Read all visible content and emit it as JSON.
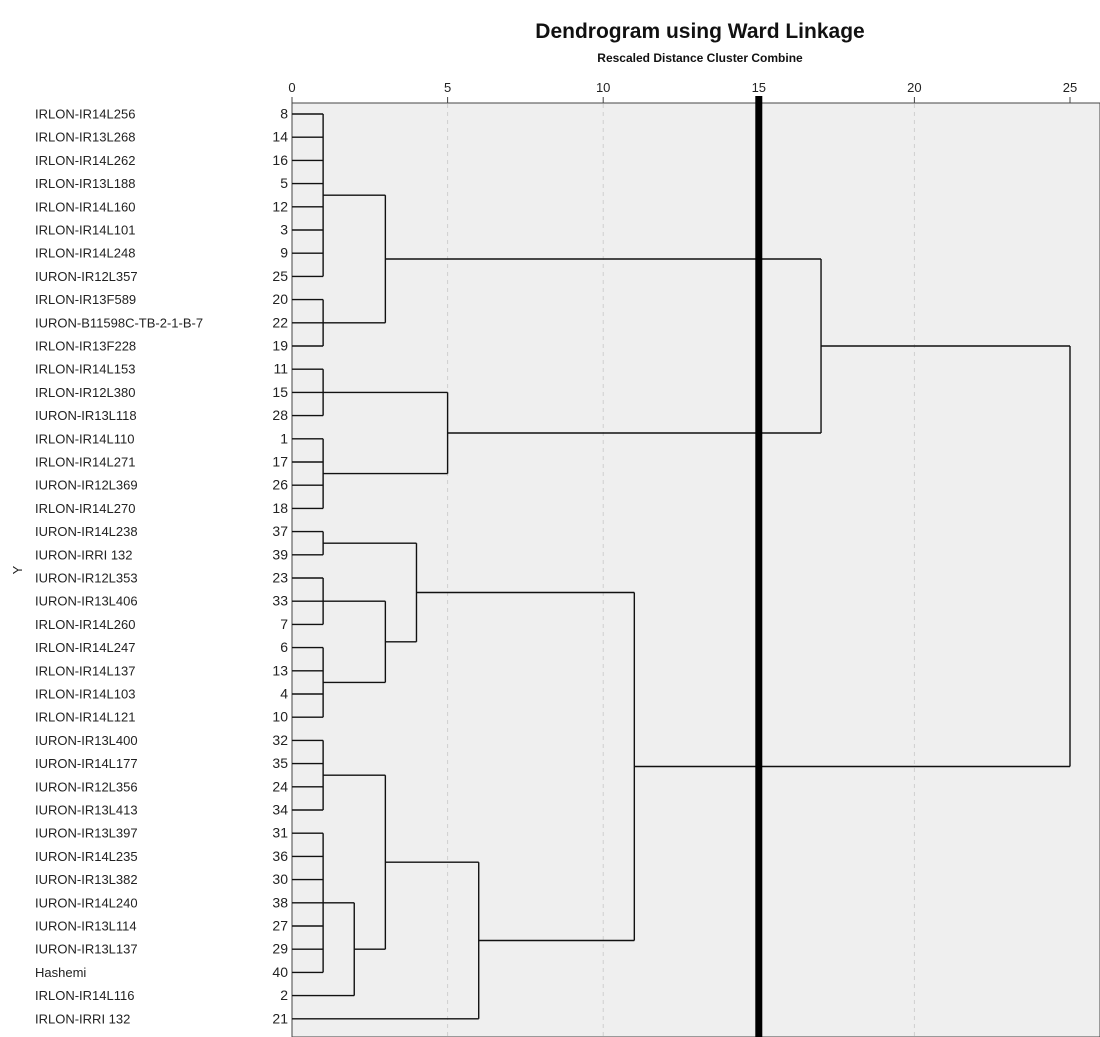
{
  "chart_data": {
    "type": "dendrogram",
    "title": "Dendrogram using Ward Linkage",
    "subtitle": "Rescaled Distance Cluster Combine",
    "ylabel": "Y",
    "x_ticks": [
      0,
      5,
      10,
      15,
      20,
      25
    ],
    "xlim": [
      0,
      25
    ],
    "cut_line": 15,
    "grid": "vertical-dashed",
    "colors": {
      "plot_bg": "#efefef",
      "line": "#111111",
      "cut": "#000000",
      "grid": "#cfcfcf"
    },
    "leaves": [
      {
        "label": "IRLON-IR14L256",
        "case": 8
      },
      {
        "label": "IRLON-IR13L268",
        "case": 14
      },
      {
        "label": "IRLON-IR14L262",
        "case": 16
      },
      {
        "label": "IRLON-IR13L188",
        "case": 5
      },
      {
        "label": "IRLON-IR14L160",
        "case": 12
      },
      {
        "label": "IRLON-IR14L101",
        "case": 3
      },
      {
        "label": "IRLON-IR14L248",
        "case": 9
      },
      {
        "label": "IURON-IR12L357",
        "case": 25
      },
      {
        "label": "IRLON-IR13F589",
        "case": 20
      },
      {
        "label": "IURON-B11598C-TB-2-1-B-7",
        "case": 22
      },
      {
        "label": "IRLON-IR13F228",
        "case": 19
      },
      {
        "label": "IRLON-IR14L153",
        "case": 11
      },
      {
        "label": "IRLON-IR12L380",
        "case": 15
      },
      {
        "label": "IURON-IR13L118",
        "case": 28
      },
      {
        "label": "IRLON-IR14L110",
        "case": 1
      },
      {
        "label": "IRLON-IR14L271",
        "case": 17
      },
      {
        "label": "IURON-IR12L369",
        "case": 26
      },
      {
        "label": "IRLON-IR14L270",
        "case": 18
      },
      {
        "label": "IURON-IR14L238",
        "case": 37
      },
      {
        "label": "IURON-IRRI 132",
        "case": 39
      },
      {
        "label": "IURON-IR12L353",
        "case": 23
      },
      {
        "label": "IURON-IR13L406",
        "case": 33
      },
      {
        "label": "IRLON-IR14L260",
        "case": 7
      },
      {
        "label": "IRLON-IR14L247",
        "case": 6
      },
      {
        "label": "IRLON-IR14L137",
        "case": 13
      },
      {
        "label": "IRLON-IR14L103",
        "case": 4
      },
      {
        "label": "IRLON-IR14L121",
        "case": 10
      },
      {
        "label": "IURON-IR13L400",
        "case": 32
      },
      {
        "label": "IURON-IR14L177",
        "case": 35
      },
      {
        "label": "IURON-IR12L356",
        "case": 24
      },
      {
        "label": "IURON-IR13L413",
        "case": 34
      },
      {
        "label": "IURON-IR13L397",
        "case": 31
      },
      {
        "label": "IURON-IR14L235",
        "case": 36
      },
      {
        "label": "IURON-IR13L382",
        "case": 30
      },
      {
        "label": "IURON-IR14L240",
        "case": 38
      },
      {
        "label": "IURON-IR13L114",
        "case": 27
      },
      {
        "label": "IURON-IR13L137",
        "case": 29
      },
      {
        "label": "Hashemi",
        "case": 40
      },
      {
        "label": "IRLON-IR14L116",
        "case": 2
      },
      {
        "label": "IRLON-IRRI 132",
        "case": 21
      }
    ],
    "merges": [
      {
        "id": "A",
        "height": 1,
        "children": [
          0,
          1,
          2,
          3,
          4,
          5,
          6,
          7
        ]
      },
      {
        "id": "B",
        "height": 1,
        "children": [
          8,
          9,
          10
        ]
      },
      {
        "id": "C",
        "height": 3,
        "children": [
          "A",
          "B"
        ]
      },
      {
        "id": "D",
        "height": 1,
        "children": [
          11,
          12,
          13
        ]
      },
      {
        "id": "E",
        "height": 1,
        "children": [
          14,
          15,
          16,
          17
        ]
      },
      {
        "id": "F",
        "height": 5,
        "children": [
          "D",
          "E"
        ]
      },
      {
        "id": "G",
        "height": 17,
        "children": [
          "C",
          "F"
        ]
      },
      {
        "id": "H",
        "height": 1,
        "children": [
          18,
          19
        ]
      },
      {
        "id": "I",
        "height": 1,
        "children": [
          20,
          21,
          22
        ]
      },
      {
        "id": "J",
        "height": 1,
        "children": [
          23,
          24,
          25,
          26
        ]
      },
      {
        "id": "K",
        "height": 3,
        "children": [
          "I",
          "J"
        ]
      },
      {
        "id": "L",
        "height": 4,
        "children": [
          "H",
          "K"
        ]
      },
      {
        "id": "M",
        "height": 1,
        "children": [
          27,
          28,
          29,
          30
        ]
      },
      {
        "id": "N",
        "height": 1,
        "children": [
          31,
          32,
          33,
          34,
          35,
          36,
          37
        ]
      },
      {
        "id": "O",
        "height": 2,
        "children": [
          "N",
          38
        ]
      },
      {
        "id": "P",
        "height": 3,
        "children": [
          "M",
          "O"
        ]
      },
      {
        "id": "Q",
        "height": 6,
        "children": [
          "P",
          39
        ]
      },
      {
        "id": "R",
        "height": 11,
        "children": [
          "L",
          "Q"
        ]
      },
      {
        "id": "S",
        "height": 25,
        "children": [
          "G",
          "R"
        ]
      }
    ]
  }
}
